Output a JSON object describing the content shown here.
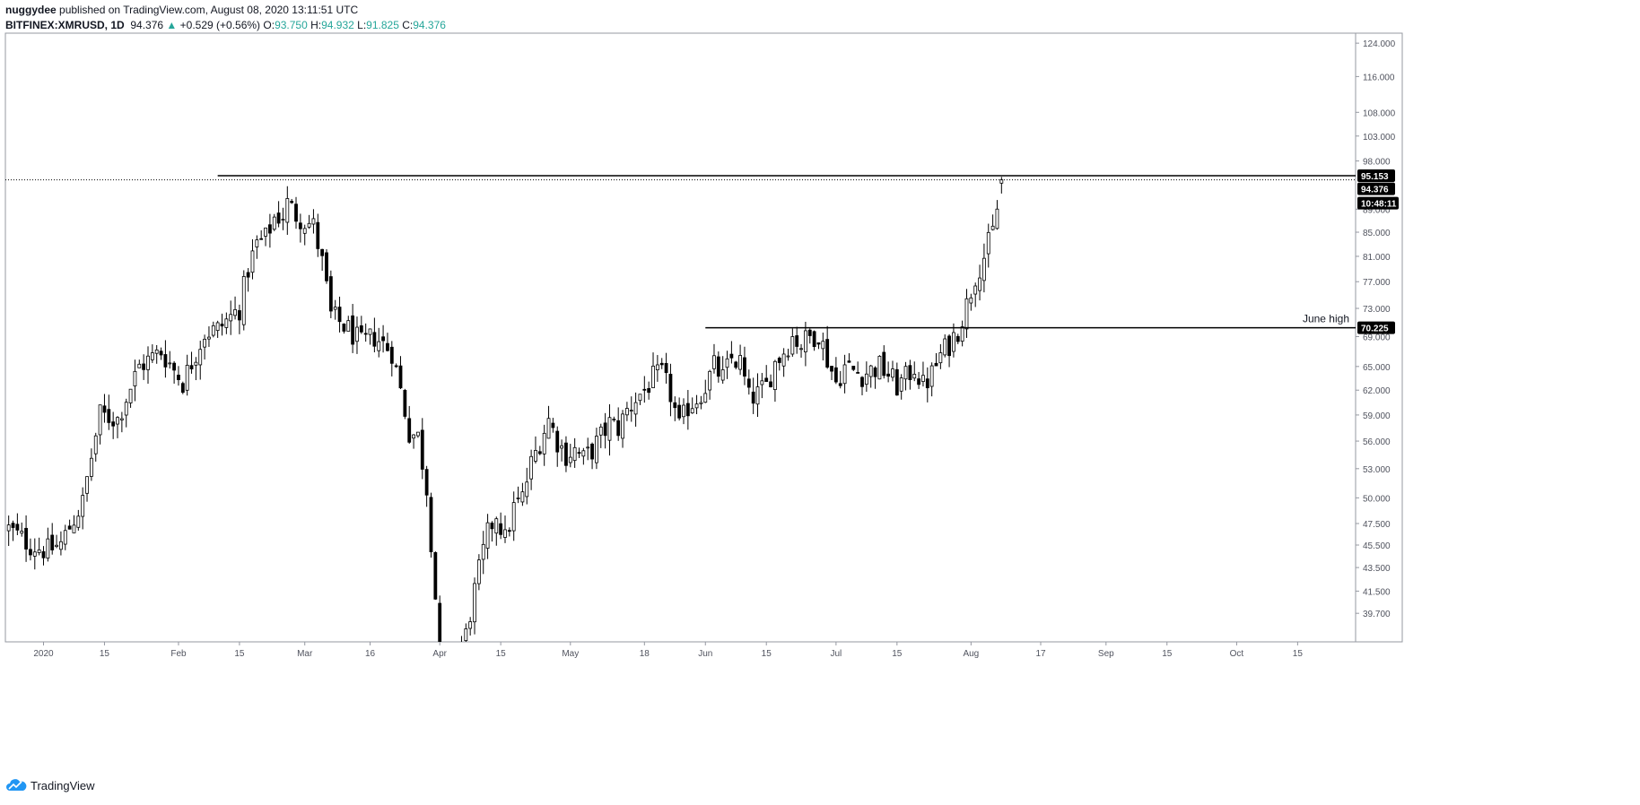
{
  "header": {
    "user": "nuggydee",
    "published": "published on TradingView.com, August 08, 2020 13:11:51 UTC",
    "symbol": "BITFINEX:XMRUSD, 1D",
    "last": "94.376",
    "arrow": "▲",
    "change": "+0.529 (+0.56%)",
    "o_label": "O:",
    "o": "93.750",
    "h_label": "H:",
    "h": "94.932",
    "l_label": "L:",
    "l": "91.825",
    "c_label": "C:",
    "c": "94.376"
  },
  "footer": {
    "brand": "TradingView",
    "icon": "tradingview-cloud-logo-icon"
  },
  "colors": {
    "up": "#26a69a",
    "text": "#131722",
    "line": "#000000"
  },
  "chart_data": {
    "type": "candlestick",
    "y_scale": "log",
    "ylim": [
      37.5,
      126.5
    ],
    "y_ticks": [
      "124.000",
      "116.000",
      "108.000",
      "103.000",
      "98.000",
      "89.000",
      "85.000",
      "81.000",
      "77.000",
      "73.000",
      "69.000",
      "65.000",
      "62.000",
      "59.000",
      "56.000",
      "53.000",
      "50.000",
      "47.500",
      "45.500",
      "43.500",
      "41.500",
      "39.700"
    ],
    "x_ticks": [
      {
        "label": "2020",
        "day": 0
      },
      {
        "label": "15",
        "day": 14
      },
      {
        "label": "Feb",
        "day": 31
      },
      {
        "label": "15",
        "day": 45
      },
      {
        "label": "Mar",
        "day": 60
      },
      {
        "label": "16",
        "day": 75
      },
      {
        "label": "Apr",
        "day": 91
      },
      {
        "label": "15",
        "day": 105
      },
      {
        "label": "May",
        "day": 121
      },
      {
        "label": "18",
        "day": 138
      },
      {
        "label": "Jun",
        "day": 152
      },
      {
        "label": "15",
        "day": 166
      },
      {
        "label": "Jul",
        "day": 182
      },
      {
        "label": "15",
        "day": 196
      },
      {
        "label": "Aug",
        "day": 213
      },
      {
        "label": "17",
        "day": 229
      },
      {
        "label": "Sep",
        "day": 244
      },
      {
        "label": "15",
        "day": 258
      },
      {
        "label": "Oct",
        "day": 274
      },
      {
        "label": "15",
        "day": 288
      }
    ],
    "last_day": 220,
    "close_path": [
      [
        -8,
        47.0
      ],
      [
        -3,
        45.5
      ],
      [
        1,
        45.0
      ],
      [
        4,
        45.6
      ],
      [
        9,
        49.5
      ],
      [
        13,
        59.0
      ],
      [
        17,
        58.5
      ],
      [
        22,
        65.0
      ],
      [
        27,
        67.0
      ],
      [
        32,
        63.0
      ],
      [
        37,
        69.5
      ],
      [
        40,
        70.0
      ],
      [
        45,
        73.0
      ],
      [
        47,
        79.0
      ],
      [
        49,
        83.0
      ],
      [
        51,
        84.0
      ],
      [
        53,
        87.5
      ],
      [
        55,
        88.0
      ],
      [
        56,
        90.0
      ],
      [
        58,
        88.0
      ],
      [
        62,
        86.0
      ],
      [
        64,
        80.0
      ],
      [
        66,
        72.0
      ],
      [
        70,
        70.0
      ],
      [
        73,
        68.0
      ],
      [
        76,
        69.0
      ],
      [
        78,
        68.0
      ],
      [
        80,
        67.0
      ],
      [
        82,
        62.0
      ],
      [
        84,
        57.0
      ],
      [
        86,
        56.5
      ],
      [
        88,
        51.0
      ],
      [
        91,
        36.0
      ],
      [
        95,
        36.5
      ],
      [
        97,
        38.0
      ],
      [
        99,
        41.5
      ],
      [
        102,
        46.5
      ],
      [
        104,
        48.5
      ],
      [
        106,
        46.0
      ],
      [
        108,
        49.0
      ],
      [
        110,
        50.0
      ],
      [
        112,
        53.5
      ],
      [
        114,
        56.0
      ],
      [
        116,
        58.5
      ],
      [
        118,
        56.0
      ],
      [
        120,
        54.5
      ],
      [
        122,
        55.0
      ],
      [
        124,
        54.0
      ],
      [
        126,
        55.0
      ],
      [
        128,
        56.5
      ],
      [
        130,
        58.0
      ],
      [
        132,
        57.5
      ],
      [
        134,
        59.5
      ],
      [
        136,
        61.0
      ],
      [
        138,
        62.0
      ],
      [
        140,
        63.5
      ],
      [
        142,
        64.0
      ],
      [
        144,
        61.5
      ],
      [
        146,
        57.5
      ],
      [
        148,
        60.0
      ],
      [
        150,
        61.0
      ],
      [
        152,
        62.5
      ],
      [
        154,
        65.0
      ],
      [
        156,
        63.5
      ],
      [
        158,
        66.0
      ],
      [
        160,
        65.5
      ],
      [
        162,
        61.0
      ],
      [
        164,
        61.5
      ],
      [
        166,
        62.5
      ],
      [
        168,
        65.5
      ],
      [
        170,
        67.0
      ],
      [
        172,
        69.0
      ],
      [
        174,
        68.0
      ],
      [
        176,
        69.0
      ],
      [
        178,
        69.5
      ],
      [
        180,
        66.0
      ],
      [
        182,
        63.0
      ],
      [
        184,
        65.0
      ],
      [
        186,
        64.5
      ],
      [
        188,
        64.0
      ],
      [
        190,
        64.5
      ],
      [
        192,
        65.0
      ],
      [
        194,
        64.0
      ],
      [
        196,
        62.5
      ],
      [
        198,
        63.5
      ],
      [
        200,
        65.0
      ],
      [
        202,
        62.5
      ],
      [
        204,
        64.0
      ],
      [
        206,
        66.5
      ],
      [
        208,
        68.0
      ],
      [
        210,
        70.0
      ],
      [
        212,
        73.5
      ],
      [
        214,
        78.0
      ],
      [
        216,
        81.0
      ],
      [
        218,
        85.0
      ],
      [
        219,
        89.0
      ],
      [
        220,
        94.376
      ]
    ],
    "last_candle": {
      "open": 93.75,
      "high": 94.932,
      "low": 91.825,
      "close": 94.376
    },
    "lines": [
      {
        "name": "february-high-line",
        "price": 95.153,
        "day_start": 40,
        "label": "95.153"
      },
      {
        "name": "june-high-line",
        "price": 70.225,
        "day_start": 152,
        "label": "70.225",
        "annotation": "June high"
      }
    ],
    "last_price_line": {
      "price": 94.376,
      "label": "94.376",
      "countdown": "10:48:11"
    }
  }
}
